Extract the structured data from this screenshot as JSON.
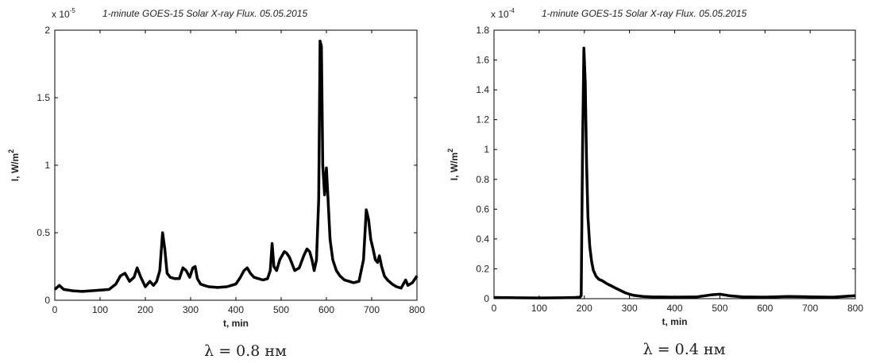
{
  "chart_data": [
    {
      "type": "line",
      "title": "1-minute GOES-15 Solar X-ray Flux. 05.05.2015",
      "multiplier": {
        "base": "x 10",
        "exp": "-5"
      },
      "xlabel": "t, min",
      "ylabel": {
        "main": "I, W/m",
        "sup": "2"
      },
      "caption": "λ = 0.8 нм",
      "xlim": [
        0,
        800
      ],
      "ylim": [
        0,
        2
      ],
      "xticks": [
        0,
        100,
        200,
        300,
        400,
        500,
        600,
        700,
        800
      ],
      "yticks": [
        0,
        0.5,
        1,
        1.5,
        2
      ],
      "yticklabels": [
        "0",
        "0.5",
        "1",
        "1.5",
        "2"
      ],
      "grid": false,
      "series": [
        {
          "color": "#000000",
          "x": [
            0,
            10,
            20,
            40,
            60,
            80,
            100,
            120,
            135,
            145,
            155,
            165,
            175,
            182,
            190,
            200,
            210,
            218,
            225,
            232,
            238,
            243,
            248,
            255,
            265,
            275,
            283,
            290,
            298,
            305,
            310,
            315,
            322,
            330,
            340,
            360,
            380,
            390,
            400,
            410,
            418,
            425,
            432,
            440,
            450,
            460,
            470,
            476,
            480,
            484,
            490,
            497,
            502,
            507,
            512,
            518,
            523,
            530,
            540,
            550,
            557,
            563,
            568,
            573,
            578,
            583,
            586,
            589,
            592,
            596,
            600,
            604,
            608,
            614,
            622,
            630,
            640,
            650,
            660,
            672,
            682,
            688,
            693,
            698,
            703,
            708,
            713,
            717,
            722,
            728,
            735,
            745,
            755,
            765,
            770,
            775,
            780,
            790,
            800
          ],
          "y": [
            0.08,
            0.11,
            0.08,
            0.07,
            0.065,
            0.07,
            0.075,
            0.08,
            0.12,
            0.18,
            0.2,
            0.14,
            0.17,
            0.24,
            0.17,
            0.1,
            0.14,
            0.11,
            0.14,
            0.22,
            0.5,
            0.38,
            0.2,
            0.17,
            0.16,
            0.16,
            0.24,
            0.22,
            0.17,
            0.24,
            0.25,
            0.16,
            0.12,
            0.11,
            0.1,
            0.095,
            0.1,
            0.11,
            0.12,
            0.17,
            0.22,
            0.24,
            0.2,
            0.17,
            0.16,
            0.15,
            0.16,
            0.22,
            0.42,
            0.25,
            0.22,
            0.3,
            0.33,
            0.36,
            0.35,
            0.32,
            0.28,
            0.22,
            0.24,
            0.33,
            0.38,
            0.36,
            0.3,
            0.22,
            0.3,
            0.75,
            1.92,
            1.88,
            1.0,
            0.78,
            0.98,
            0.72,
            0.45,
            0.3,
            0.22,
            0.18,
            0.15,
            0.14,
            0.13,
            0.14,
            0.3,
            0.67,
            0.6,
            0.45,
            0.38,
            0.3,
            0.28,
            0.33,
            0.25,
            0.18,
            0.15,
            0.12,
            0.1,
            0.09,
            0.12,
            0.15,
            0.11,
            0.13,
            0.18
          ]
        }
      ]
    },
    {
      "type": "line",
      "title": "1-minute GOES-15 Solar X-ray Flux. 05.05.2015",
      "multiplier": {
        "base": "x 10",
        "exp": "-4"
      },
      "xlabel": "t, min",
      "ylabel": {
        "main": "I, W/m",
        "sup": "2"
      },
      "caption": "λ = 0.4 нм",
      "xlim": [
        0,
        800
      ],
      "ylim": [
        0,
        1.8
      ],
      "xticks": [
        0,
        100,
        200,
        300,
        400,
        500,
        600,
        700,
        800
      ],
      "yticks": [
        0,
        0.2,
        0.4,
        0.6,
        0.8,
        1,
        1.2,
        1.4,
        1.6,
        1.8
      ],
      "yticklabels": [
        "0",
        "0.2",
        "0.4",
        "0.6",
        "0.8",
        "1",
        "1.2",
        "1.4",
        "1.6",
        "1.8"
      ],
      "grid": false,
      "series": [
        {
          "color": "#000000",
          "x": [
            0,
            50,
            100,
            150,
            180,
            190,
            193,
            196,
            199,
            202,
            205,
            208,
            212,
            216,
            220,
            226,
            232,
            240,
            250,
            260,
            270,
            280,
            290,
            300,
            310,
            330,
            350,
            400,
            450,
            480,
            500,
            520,
            550,
            600,
            650,
            700,
            750,
            800
          ],
          "y": [
            0.008,
            0.006,
            0.005,
            0.006,
            0.008,
            0.01,
            0.02,
            1.0,
            1.68,
            1.45,
            0.9,
            0.55,
            0.35,
            0.25,
            0.19,
            0.15,
            0.13,
            0.12,
            0.1,
            0.085,
            0.07,
            0.055,
            0.04,
            0.03,
            0.022,
            0.015,
            0.012,
            0.01,
            0.012,
            0.025,
            0.03,
            0.02,
            0.012,
            0.01,
            0.015,
            0.012,
            0.01,
            0.02
          ]
        }
      ]
    }
  ]
}
